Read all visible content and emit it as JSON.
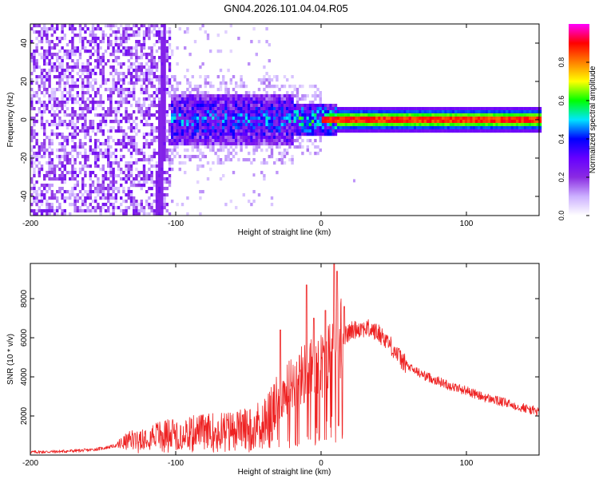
{
  "title": "GN04.2026.101.04.04.R05",
  "chart_data": [
    {
      "type": "heatmap",
      "panel": "spectrogram",
      "xlabel": "Height of straight line (km)",
      "ylabel": "Frequency (Hz)",
      "xlim": [
        -200,
        150
      ],
      "ylim": [
        -50,
        50
      ],
      "xticks": [
        -200,
        -100,
        0,
        100
      ],
      "yticks": [
        -40,
        -20,
        0,
        20,
        40
      ],
      "grid": false,
      "colorbar": {
        "label": "Normalized spectral amplitude",
        "range": [
          0,
          1
        ],
        "ticks": [
          0.0,
          0.2,
          0.4,
          0.6,
          0.8
        ],
        "tick_labels": [
          "0.0",
          "0.2",
          "0.4",
          "0.6",
          "0.8"
        ],
        "colormap": [
          "#ffffff",
          "#ccb0ff",
          "#8a2be2",
          "#6600ff",
          "#0000ff",
          "#00e5ff",
          "#00ff00",
          "#ffff00",
          "#ff8000",
          "#ff0000",
          "#ff00ff"
        ]
      },
      "description": {
        "noise_region_km": [
          -200,
          -105
        ],
        "noise_density": 0.55,
        "vertical_streak_km": [
          -118,
          -108
        ],
        "signal_band_hz": [
          -7,
          7
        ],
        "signal_center_hz": 0,
        "peak_region_km": [
          -10,
          150
        ],
        "sparse_points": [
          [
            22,
            -31
          ],
          [
            -47,
            -28
          ],
          [
            -45,
            -15
          ]
        ]
      }
    },
    {
      "type": "line",
      "panel": "snr",
      "xlabel": "Height of straight line (km)",
      "ylabel": "SNR (10 * v/v)",
      "xlim": [
        -200,
        150
      ],
      "ylim": [
        0,
        9800
      ],
      "xticks": [
        -200,
        -100,
        0,
        100
      ],
      "yticks": [
        2000,
        4000,
        6000,
        8000
      ],
      "grid": false,
      "series": [
        {
          "name": "SNR",
          "color": "#ee2222",
          "x": [
            -200,
            -180,
            -160,
            -150,
            -140,
            -130,
            -120,
            -110,
            -100,
            -90,
            -80,
            -70,
            -60,
            -50,
            -40,
            -30,
            -25,
            -20,
            -15,
            -10,
            -5,
            0,
            5,
            10,
            15,
            20,
            25,
            30,
            35,
            40,
            45,
            50,
            55,
            60,
            70,
            80,
            90,
            100,
            110,
            120,
            130,
            140,
            150
          ],
          "y": [
            150,
            180,
            250,
            350,
            500,
            800,
            1000,
            1100,
            1200,
            1250,
            1300,
            1350,
            1400,
            1500,
            1800,
            2500,
            3200,
            3700,
            4000,
            4200,
            4400,
            4600,
            5000,
            5600,
            6000,
            6300,
            6500,
            6500,
            6400,
            6200,
            5900,
            5400,
            4900,
            4500,
            4100,
            3800,
            3500,
            3300,
            3000,
            2800,
            2600,
            2400,
            2200
          ],
          "spikes": [
            {
              "x": -10,
              "y": 8700
            },
            {
              "x": -5,
              "y": 7000
            },
            {
              "x": 9,
              "y": 9800
            },
            {
              "x": 11,
              "y": 9400
            },
            {
              "x": 12,
              "y": 1500
            },
            {
              "x": -28,
              "y": 6400
            },
            {
              "x": 3,
              "y": 7400
            },
            {
              "x": 16,
              "y": 7600
            }
          ]
        }
      ]
    }
  ]
}
